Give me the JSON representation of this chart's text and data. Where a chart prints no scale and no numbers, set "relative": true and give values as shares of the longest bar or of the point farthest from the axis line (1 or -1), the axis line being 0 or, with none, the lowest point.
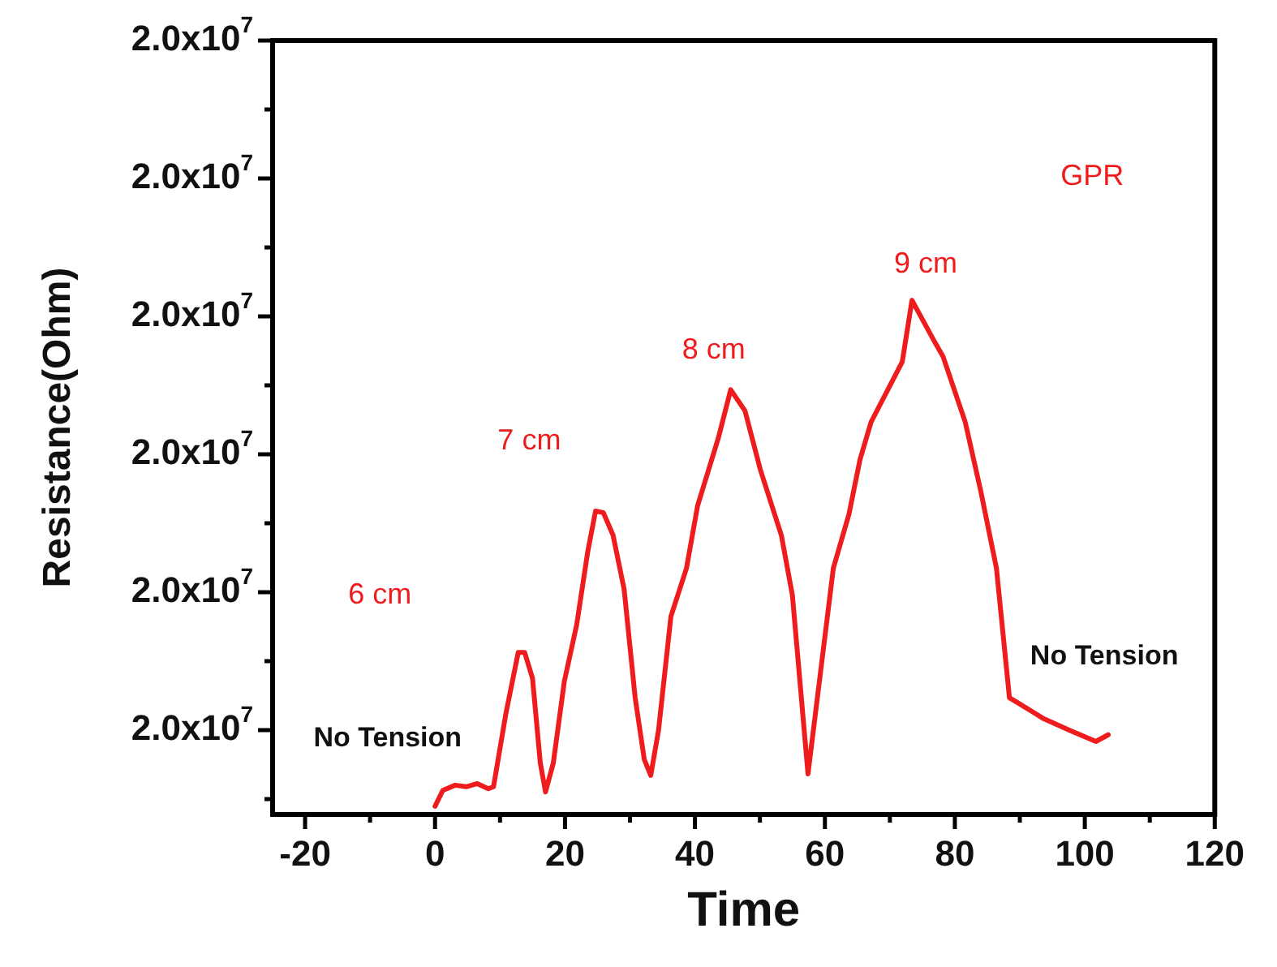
{
  "chart_data": {
    "type": "line",
    "relative": true,
    "xlabel": "Time",
    "ylabel": "Resistance(Ohm)",
    "xlim": [
      -25,
      120
    ],
    "xticks": [
      -20,
      {
        "value": -10,
        "label": null
      },
      0,
      {
        "value": 10,
        "label": null
      },
      20,
      {
        "value": 30,
        "label": null
      },
      40,
      {
        "value": 50,
        "label": null
      },
      60,
      {
        "value": 70,
        "label": null
      },
      80,
      {
        "value": 90,
        "label": null
      },
      100,
      {
        "value": 110,
        "label": null
      },
      120
    ],
    "grid": false,
    "legend": false,
    "marker": "none",
    "line_style": "solid",
    "series": [
      {
        "name": "GPR",
        "color": "#ee1c1c",
        "x": [
          0,
          1.2,
          3.1,
          4.8,
          6.5,
          8.2,
          9,
          10.9,
          12.8,
          13.8,
          15,
          16.2,
          17,
          18.2,
          19.9,
          21.8,
          23.5,
          24.7,
          25.9,
          27.4,
          29.1,
          30.8,
          32.2,
          33.2,
          34.4,
          36.3,
          38.7,
          40.4,
          43.6,
          45.5,
          47.7,
          50.1,
          53.3,
          55,
          57.4,
          61.3,
          63.7,
          65.4,
          67.1,
          71.9,
          73.4,
          76.8,
          78.2,
          81.6,
          84,
          86.4,
          88.4,
          89.6,
          93.7,
          97.6,
          101.7,
          103.6
        ],
        "values": [
          0.016,
          0.047,
          0.057,
          0.054,
          0.06,
          0.05,
          0.054,
          0.196,
          0.315,
          0.315,
          0.265,
          0.1,
          0.044,
          0.1,
          0.259,
          0.369,
          0.511,
          0.59,
          0.587,
          0.543,
          0.438,
          0.227,
          0.107,
          0.076,
          0.164,
          0.385,
          0.479,
          0.6,
          0.732,
          0.826,
          0.785,
          0.669,
          0.543,
          0.426,
          0.079,
          0.479,
          0.584,
          0.69,
          0.763,
          0.88,
          1.0,
          0.921,
          0.89,
          0.763,
          0.628,
          0.479,
          0.227,
          0.218,
          0.186,
          0.164,
          0.142,
          0.155
        ]
      }
    ],
    "annotations": [
      "2.0x10$^{7}$",
      "2.0x10$^{7}$",
      "2.0x10$^{7}$",
      "2.0x10$^{7}$",
      "2.0x10$^{7}$",
      "2.0x10$^{7}$",
      "6 cm",
      "7 cm",
      "8 cm",
      "9 cm",
      "No Tension",
      "No Tension"
    ]
  }
}
